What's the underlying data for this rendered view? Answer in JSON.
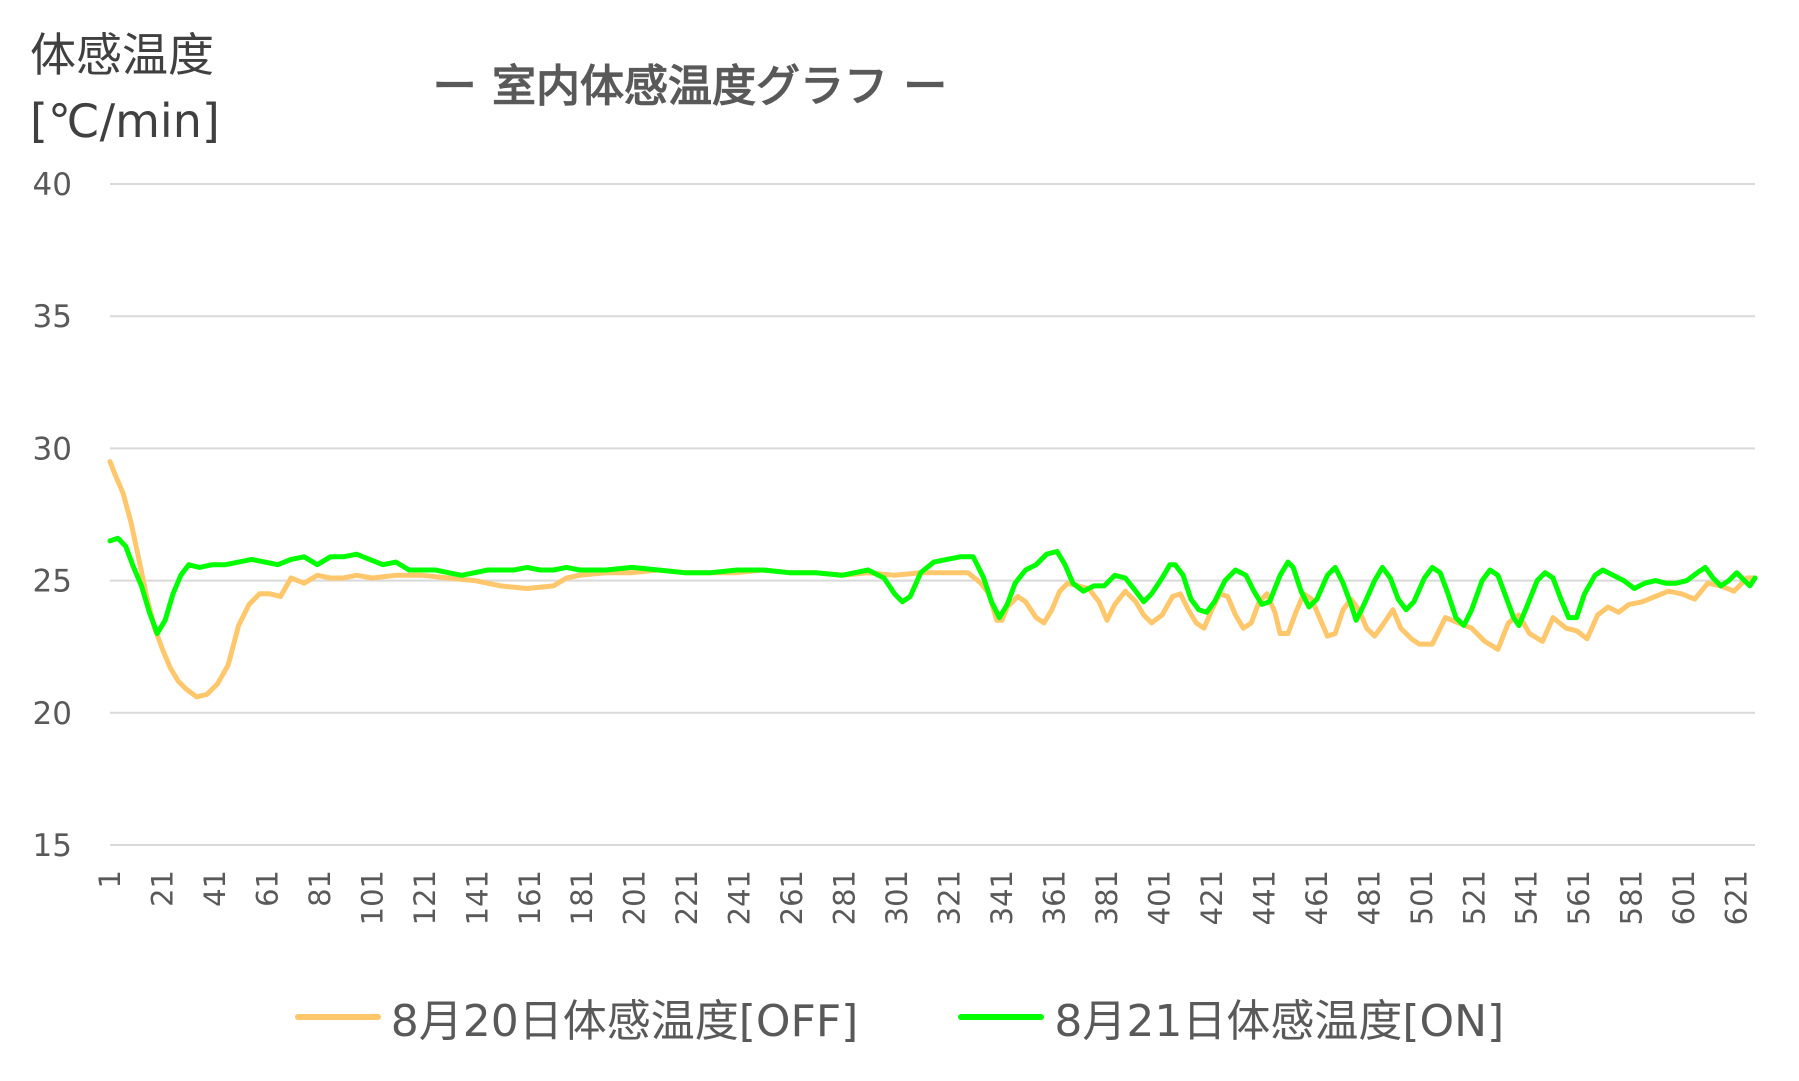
{
  "chart_data": {
    "type": "line",
    "title": "ー 室内体感温度グラフ ー",
    "ylabel": "体感温度\n[℃/min]",
    "xlabel": "",
    "ylim": [
      15,
      40
    ],
    "yticks": [
      15,
      20,
      25,
      30,
      35,
      40
    ],
    "xlim": [
      1,
      628
    ],
    "xticks": [
      1,
      21,
      41,
      61,
      81,
      101,
      121,
      141,
      161,
      181,
      201,
      221,
      241,
      261,
      281,
      301,
      321,
      341,
      361,
      381,
      401,
      421,
      441,
      461,
      481,
      501,
      521,
      541,
      561,
      581,
      601,
      621
    ],
    "grid": true,
    "legend_position": "bottom",
    "series": [
      {
        "name": "8月20日体感温度[OFF]",
        "color": "#FFC76B",
        "points": [
          [
            1,
            29.5
          ],
          [
            3,
            29.0
          ],
          [
            6,
            28.3
          ],
          [
            9,
            27.2
          ],
          [
            12,
            25.8
          ],
          [
            15,
            24.4
          ],
          [
            18,
            23.2
          ],
          [
            21,
            22.4
          ],
          [
            24,
            21.7
          ],
          [
            27,
            21.2
          ],
          [
            30,
            20.9
          ],
          [
            34,
            20.6
          ],
          [
            38,
            20.7
          ],
          [
            42,
            21.1
          ],
          [
            46,
            21.8
          ],
          [
            50,
            23.3
          ],
          [
            54,
            24.1
          ],
          [
            58,
            24.5
          ],
          [
            62,
            24.5
          ],
          [
            66,
            24.4
          ],
          [
            70,
            25.1
          ],
          [
            75,
            24.9
          ],
          [
            80,
            25.2
          ],
          [
            85,
            25.1
          ],
          [
            90,
            25.1
          ],
          [
            95,
            25.2
          ],
          [
            101,
            25.1
          ],
          [
            110,
            25.2
          ],
          [
            120,
            25.2
          ],
          [
            130,
            25.1
          ],
          [
            140,
            25.0
          ],
          [
            150,
            24.8
          ],
          [
            160,
            24.7
          ],
          [
            170,
            24.8
          ],
          [
            175,
            25.1
          ],
          [
            180,
            25.2
          ],
          [
            190,
            25.3
          ],
          [
            200,
            25.3
          ],
          [
            210,
            25.4
          ],
          [
            220,
            25.3
          ],
          [
            230,
            25.3
          ],
          [
            240,
            25.3
          ],
          [
            250,
            25.4
          ],
          [
            260,
            25.3
          ],
          [
            270,
            25.3
          ],
          [
            280,
            25.2
          ],
          [
            290,
            25.3
          ],
          [
            300,
            25.2
          ],
          [
            310,
            25.3
          ],
          [
            320,
            25.3
          ],
          [
            328,
            25.3
          ],
          [
            333,
            24.9
          ],
          [
            336,
            24.5
          ],
          [
            339,
            23.5
          ],
          [
            341,
            23.5
          ],
          [
            343,
            24.0
          ],
          [
            347,
            24.4
          ],
          [
            350,
            24.2
          ],
          [
            354,
            23.6
          ],
          [
            357,
            23.4
          ],
          [
            360,
            23.9
          ],
          [
            363,
            24.6
          ],
          [
            366,
            24.9
          ],
          [
            370,
            24.8
          ],
          [
            374,
            24.7
          ],
          [
            378,
            24.2
          ],
          [
            381,
            23.5
          ],
          [
            384,
            24.1
          ],
          [
            388,
            24.6
          ],
          [
            392,
            24.2
          ],
          [
            395,
            23.7
          ],
          [
            398,
            23.4
          ],
          [
            402,
            23.7
          ],
          [
            406,
            24.4
          ],
          [
            409,
            24.5
          ],
          [
            412,
            23.9
          ],
          [
            415,
            23.4
          ],
          [
            418,
            23.2
          ],
          [
            421,
            23.9
          ],
          [
            424,
            24.5
          ],
          [
            427,
            24.4
          ],
          [
            430,
            23.7
          ],
          [
            433,
            23.2
          ],
          [
            436,
            23.4
          ],
          [
            439,
            24.2
          ],
          [
            442,
            24.5
          ],
          [
            445,
            23.8
          ],
          [
            447,
            23.0
          ],
          [
            450,
            23.0
          ],
          [
            453,
            23.8
          ],
          [
            456,
            24.5
          ],
          [
            459,
            24.3
          ],
          [
            462,
            23.6
          ],
          [
            465,
            22.9
          ],
          [
            468,
            23.0
          ],
          [
            471,
            23.9
          ],
          [
            474,
            24.3
          ],
          [
            477,
            23.9
          ],
          [
            480,
            23.2
          ],
          [
            483,
            22.9
          ],
          [
            486,
            23.3
          ],
          [
            490,
            23.9
          ],
          [
            493,
            23.2
          ],
          [
            497,
            22.8
          ],
          [
            500,
            22.6
          ],
          [
            505,
            22.6
          ],
          [
            510,
            23.6
          ],
          [
            515,
            23.4
          ],
          [
            520,
            23.2
          ],
          [
            525,
            22.7
          ],
          [
            530,
            22.4
          ],
          [
            534,
            23.4
          ],
          [
            538,
            23.7
          ],
          [
            542,
            23.0
          ],
          [
            547,
            22.7
          ],
          [
            551,
            23.6
          ],
          [
            556,
            23.2
          ],
          [
            560,
            23.1
          ],
          [
            564,
            22.8
          ],
          [
            568,
            23.7
          ],
          [
            572,
            24.0
          ],
          [
            576,
            23.8
          ],
          [
            580,
            24.1
          ],
          [
            585,
            24.2
          ],
          [
            590,
            24.4
          ],
          [
            595,
            24.6
          ],
          [
            600,
            24.5
          ],
          [
            605,
            24.3
          ],
          [
            610,
            24.9
          ],
          [
            615,
            24.8
          ],
          [
            620,
            24.6
          ],
          [
            625,
            25.1
          ],
          [
            628,
            25.1
          ]
        ]
      },
      {
        "name": "8月21日体感温度[ON]",
        "color": "#00FF00",
        "points": [
          [
            1,
            26.5
          ],
          [
            4,
            26.6
          ],
          [
            7,
            26.3
          ],
          [
            10,
            25.5
          ],
          [
            13,
            24.8
          ],
          [
            16,
            23.8
          ],
          [
            19,
            23.0
          ],
          [
            22,
            23.5
          ],
          [
            25,
            24.5
          ],
          [
            28,
            25.2
          ],
          [
            31,
            25.6
          ],
          [
            35,
            25.5
          ],
          [
            40,
            25.6
          ],
          [
            45,
            25.6
          ],
          [
            50,
            25.7
          ],
          [
            55,
            25.8
          ],
          [
            60,
            25.7
          ],
          [
            65,
            25.6
          ],
          [
            70,
            25.8
          ],
          [
            75,
            25.9
          ],
          [
            80,
            25.6
          ],
          [
            85,
            25.9
          ],
          [
            90,
            25.9
          ],
          [
            95,
            26.0
          ],
          [
            100,
            25.8
          ],
          [
            105,
            25.6
          ],
          [
            110,
            25.7
          ],
          [
            115,
            25.4
          ],
          [
            120,
            25.4
          ],
          [
            125,
            25.4
          ],
          [
            130,
            25.3
          ],
          [
            135,
            25.2
          ],
          [
            140,
            25.3
          ],
          [
            145,
            25.4
          ],
          [
            150,
            25.4
          ],
          [
            155,
            25.4
          ],
          [
            160,
            25.5
          ],
          [
            165,
            25.4
          ],
          [
            170,
            25.4
          ],
          [
            175,
            25.5
          ],
          [
            180,
            25.4
          ],
          [
            190,
            25.4
          ],
          [
            200,
            25.5
          ],
          [
            210,
            25.4
          ],
          [
            220,
            25.3
          ],
          [
            230,
            25.3
          ],
          [
            240,
            25.4
          ],
          [
            250,
            25.4
          ],
          [
            260,
            25.3
          ],
          [
            270,
            25.3
          ],
          [
            280,
            25.2
          ],
          [
            290,
            25.4
          ],
          [
            296,
            25.1
          ],
          [
            300,
            24.5
          ],
          [
            303,
            24.2
          ],
          [
            306,
            24.4
          ],
          [
            310,
            25.3
          ],
          [
            315,
            25.7
          ],
          [
            320,
            25.8
          ],
          [
            325,
            25.9
          ],
          [
            330,
            25.9
          ],
          [
            334,
            25.1
          ],
          [
            337,
            24.2
          ],
          [
            340,
            23.6
          ],
          [
            343,
            24.1
          ],
          [
            346,
            24.9
          ],
          [
            350,
            25.4
          ],
          [
            354,
            25.6
          ],
          [
            358,
            26.0
          ],
          [
            362,
            26.1
          ],
          [
            365,
            25.6
          ],
          [
            368,
            24.9
          ],
          [
            372,
            24.6
          ],
          [
            376,
            24.8
          ],
          [
            380,
            24.8
          ],
          [
            384,
            25.2
          ],
          [
            388,
            25.1
          ],
          [
            392,
            24.6
          ],
          [
            395,
            24.2
          ],
          [
            398,
            24.5
          ],
          [
            402,
            25.1
          ],
          [
            405,
            25.6
          ],
          [
            407,
            25.6
          ],
          [
            410,
            25.2
          ],
          [
            413,
            24.3
          ],
          [
            416,
            23.9
          ],
          [
            419,
            23.8
          ],
          [
            422,
            24.2
          ],
          [
            426,
            25.0
          ],
          [
            430,
            25.4
          ],
          [
            434,
            25.2
          ],
          [
            437,
            24.6
          ],
          [
            440,
            24.1
          ],
          [
            443,
            24.2
          ],
          [
            447,
            25.2
          ],
          [
            450,
            25.7
          ],
          [
            452,
            25.5
          ],
          [
            455,
            24.6
          ],
          [
            458,
            24.0
          ],
          [
            461,
            24.3
          ],
          [
            465,
            25.2
          ],
          [
            468,
            25.5
          ],
          [
            471,
            24.9
          ],
          [
            474,
            24.1
          ],
          [
            476,
            23.5
          ],
          [
            479,
            24.1
          ],
          [
            483,
            25.0
          ],
          [
            486,
            25.5
          ],
          [
            489,
            25.1
          ],
          [
            492,
            24.3
          ],
          [
            495,
            23.9
          ],
          [
            498,
            24.2
          ],
          [
            502,
            25.1
          ],
          [
            505,
            25.5
          ],
          [
            508,
            25.3
          ],
          [
            511,
            24.5
          ],
          [
            514,
            23.6
          ],
          [
            517,
            23.3
          ],
          [
            520,
            23.9
          ],
          [
            524,
            25.0
          ],
          [
            527,
            25.4
          ],
          [
            530,
            25.2
          ],
          [
            533,
            24.4
          ],
          [
            536,
            23.6
          ],
          [
            538,
            23.3
          ],
          [
            541,
            24.0
          ],
          [
            545,
            25.0
          ],
          [
            548,
            25.3
          ],
          [
            551,
            25.1
          ],
          [
            554,
            24.3
          ],
          [
            557,
            23.6
          ],
          [
            560,
            23.6
          ],
          [
            563,
            24.5
          ],
          [
            567,
            25.2
          ],
          [
            570,
            25.4
          ],
          [
            574,
            25.2
          ],
          [
            578,
            25.0
          ],
          [
            582,
            24.7
          ],
          [
            586,
            24.9
          ],
          [
            590,
            25.0
          ],
          [
            594,
            24.9
          ],
          [
            598,
            24.9
          ],
          [
            602,
            25.0
          ],
          [
            606,
            25.3
          ],
          [
            609,
            25.5
          ],
          [
            612,
            25.1
          ],
          [
            615,
            24.8
          ],
          [
            618,
            25.0
          ],
          [
            621,
            25.3
          ],
          [
            624,
            25.0
          ],
          [
            626,
            24.8
          ],
          [
            628,
            25.1
          ]
        ]
      }
    ]
  }
}
